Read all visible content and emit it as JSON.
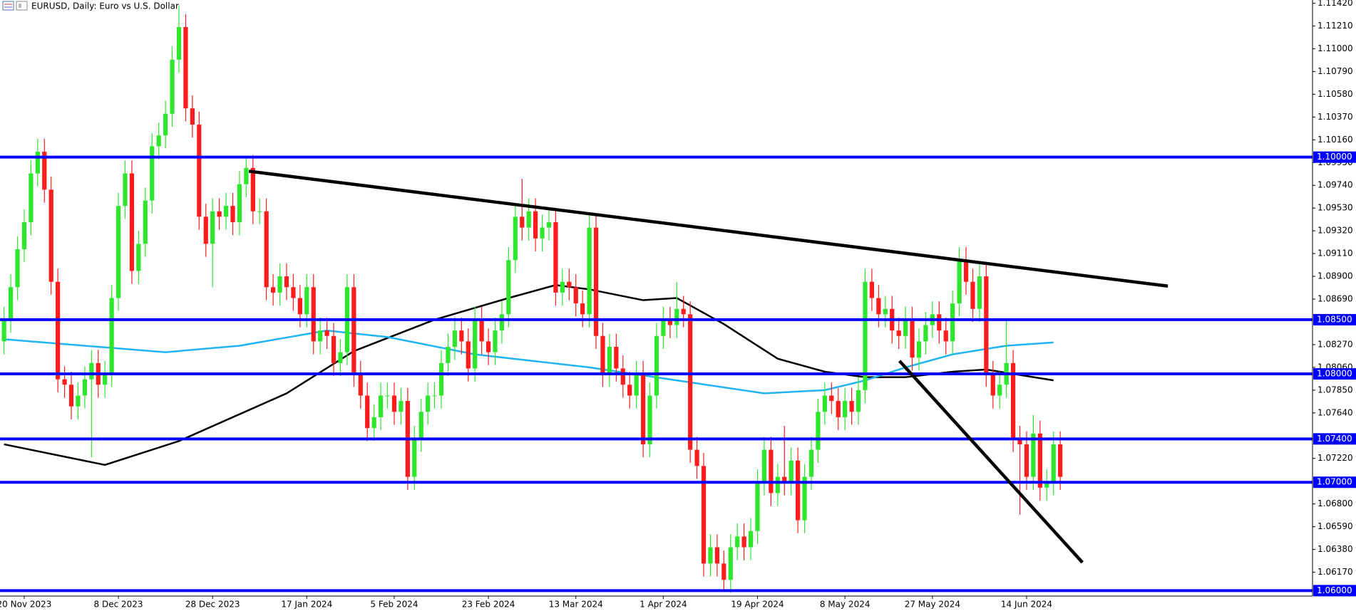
{
  "chart_data": {
    "type": "candlestick",
    "title": "EURUSD, Daily:  Euro vs U.S. Dollar",
    "up_color": "#2ee62e",
    "down_color": "#ff1c1c",
    "open": [
      1.083,
      1.085,
      1.088,
      1.0915,
      1.094,
      1.0985,
      1.1005,
      1.097,
      1.0885,
      1.0795,
      1.079,
      1.077,
      1.078,
      1.0795,
      1.081,
      1.079,
      1.08,
      1.087,
      1.0955,
      1.0985,
      1.0895,
      1.092,
      1.096,
      1.101,
      1.102,
      1.104,
      1.109,
      1.112,
      1.1045,
      1.103,
      1.0945,
      1.092,
      1.095,
      1.0945,
      1.0955,
      1.094,
      1.0975,
      1.099,
      1.095,
      1.095,
      1.088,
      1.0875,
      1.089,
      1.088,
      1.087,
      1.0855,
      1.088,
      1.083,
      1.084,
      1.0835,
      1.081,
      1.082,
      1.088,
      1.08,
      1.078,
      1.075,
      1.076,
      1.078,
      1.078,
      1.0765,
      1.0775,
      1.0705,
      1.074,
      1.0765,
      1.078,
      1.078,
      1.081,
      1.0825,
      1.084,
      1.083,
      1.0805,
      1.085,
      1.083,
      1.082,
      1.084,
      1.0855,
      1.0905,
      1.0945,
      1.0935,
      1.095,
      1.0925,
      1.0935,
      1.094,
      1.0875,
      1.0885,
      1.088,
      1.0865,
      1.0855,
      1.0935,
      1.0835,
      1.08,
      1.0825,
      1.0805,
      1.079,
      1.078,
      1.08,
      1.0735,
      1.078,
      1.0835,
      1.085,
      1.0845,
      1.086,
      1.0855,
      1.073,
      1.0715,
      1.0625,
      1.064,
      1.0625,
      1.061,
      1.064,
      1.065,
      1.064,
      1.0655,
      1.07,
      1.073,
      1.069,
      1.0705,
      1.07,
      1.072,
      1.0665,
      1.0705,
      1.073,
      1.0765,
      1.078,
      1.0775,
      1.076,
      1.0775,
      1.0765,
      1.0785,
      1.0885,
      1.087,
      1.0855,
      1.086,
      1.084,
      1.0835,
      1.085,
      1.0815,
      1.083,
      1.0845,
      1.0855,
      1.084,
      1.083,
      1.0865,
      1.0905,
      1.0885,
      1.086,
      1.089,
      1.08,
      1.078,
      1.079,
      1.081,
      1.074,
      1.0735,
      1.0705,
      1.0745,
      1.0695,
      1.07,
      1.0735
    ],
    "high": [
      1.0862,
      1.0892,
      1.0927,
      1.0952,
      1.0997,
      1.1017,
      1.1017,
      1.0982,
      1.0897,
      1.0807,
      1.0802,
      1.0792,
      1.0807,
      1.0822,
      1.0822,
      1.0812,
      1.0882,
      1.0967,
      1.0997,
      1.0997,
      1.0932,
      1.0972,
      1.1022,
      1.1032,
      1.1052,
      1.1102,
      1.114,
      1.1132,
      1.1057,
      1.1042,
      1.0957,
      1.0962,
      1.0962,
      1.0967,
      1.0967,
      1.0987,
      1.1,
      1.1002,
      1.0962,
      1.0962,
      1.0892,
      1.0902,
      1.0902,
      1.0892,
      1.0882,
      1.0892,
      1.0892,
      1.0852,
      1.0852,
      1.0847,
      1.0832,
      1.0892,
      1.0892,
      1.0812,
      1.0792,
      1.0772,
      1.0792,
      1.0792,
      1.0792,
      1.0787,
      1.0787,
      1.0752,
      1.0777,
      1.0792,
      1.0792,
      1.0822,
      1.0837,
      1.0852,
      1.0852,
      1.0842,
      1.0862,
      1.0862,
      1.0842,
      1.0852,
      1.0867,
      1.0917,
      1.0957,
      1.098,
      1.0962,
      1.0962,
      1.0947,
      1.0952,
      1.0952,
      1.0897,
      1.0897,
      1.0892,
      1.0877,
      1.0947,
      1.0947,
      1.0847,
      1.0837,
      1.0837,
      1.0817,
      1.0802,
      1.0812,
      1.0812,
      1.0792,
      1.0847,
      1.0862,
      1.0862,
      1.0885,
      1.0872,
      1.0867,
      1.0742,
      1.0727,
      1.0652,
      1.0652,
      1.0637,
      1.0652,
      1.0662,
      1.0662,
      1.0667,
      1.0712,
      1.0742,
      1.0742,
      1.0717,
      1.0752,
      1.0732,
      1.0732,
      1.0717,
      1.0742,
      1.0777,
      1.0792,
      1.0792,
      1.0787,
      1.0787,
      1.0787,
      1.0797,
      1.0897,
      1.0897,
      1.0882,
      1.0872,
      1.0872,
      1.0852,
      1.0862,
      1.0862,
      1.0842,
      1.0857,
      1.0867,
      1.0867,
      1.0852,
      1.0877,
      1.0917,
      1.0917,
      1.0897,
      1.0902,
      1.0902,
      1.0812,
      1.0802,
      1.085,
      1.0822,
      1.0752,
      1.0747,
      1.0762,
      1.0757,
      1.0712,
      1.0747,
      1.0747
    ],
    "low": [
      1.0818,
      1.0838,
      1.0868,
      1.0903,
      1.0928,
      1.0973,
      1.0958,
      1.0873,
      1.0783,
      1.0778,
      1.0758,
      1.0758,
      1.0768,
      1.0723,
      1.0778,
      1.0778,
      1.0788,
      1.0858,
      1.0943,
      1.0883,
      1.0883,
      1.0908,
      1.0948,
      1.0998,
      1.1008,
      1.1028,
      1.1078,
      1.1033,
      1.1018,
      1.0933,
      1.0908,
      1.088,
      1.0933,
      1.0933,
      1.0928,
      1.0928,
      1.0963,
      1.0938,
      1.0938,
      1.0868,
      1.0863,
      1.0863,
      1.0868,
      1.0858,
      1.0843,
      1.0843,
      1.0818,
      1.0818,
      1.0823,
      1.0798,
      1.0798,
      1.0808,
      1.0788,
      1.0768,
      1.0738,
      1.0738,
      1.0748,
      1.0768,
      1.0753,
      1.0753,
      1.0693,
      1.0693,
      1.0728,
      1.0753,
      1.0768,
      1.0768,
      1.0798,
      1.0813,
      1.0818,
      1.0793,
      1.0793,
      1.0818,
      1.0808,
      1.0808,
      1.0828,
      1.0843,
      1.0893,
      1.0923,
      1.0923,
      1.0913,
      1.0913,
      1.0923,
      1.0863,
      1.0863,
      1.0868,
      1.0853,
      1.0843,
      1.0843,
      1.0823,
      1.0788,
      1.0788,
      1.0793,
      1.0778,
      1.0768,
      1.0768,
      1.0723,
      1.0723,
      1.0768,
      1.0823,
      1.0833,
      1.0833,
      1.0843,
      1.0718,
      1.0703,
      1.0613,
      1.0613,
      1.0613,
      1.0601,
      1.0598,
      1.0628,
      1.0628,
      1.0628,
      1.0643,
      1.0688,
      1.0678,
      1.0678,
      1.0688,
      1.0688,
      1.0653,
      1.0653,
      1.0693,
      1.0718,
      1.0753,
      1.0763,
      1.0748,
      1.0748,
      1.0753,
      1.0753,
      1.0773,
      1.0858,
      1.0843,
      1.0843,
      1.0828,
      1.0823,
      1.0823,
      1.0803,
      1.0803,
      1.0818,
      1.0833,
      1.0828,
      1.0818,
      1.0818,
      1.0853,
      1.0873,
      1.0848,
      1.0848,
      1.0788,
      1.0768,
      1.0768,
      1.0778,
      1.0728,
      1.067,
      1.0693,
      1.0693,
      1.0683,
      1.0683,
      1.0688,
      1.0693
    ],
    "close": [
      1.085,
      1.088,
      1.0915,
      1.094,
      1.0985,
      1.1005,
      1.097,
      1.0885,
      1.0795,
      1.079,
      1.077,
      1.078,
      1.0795,
      1.081,
      1.079,
      1.08,
      1.087,
      1.0955,
      1.0985,
      1.0895,
      1.092,
      1.096,
      1.101,
      1.102,
      1.104,
      1.109,
      1.112,
      1.1045,
      1.103,
      1.0945,
      1.092,
      1.095,
      1.0945,
      1.0955,
      1.094,
      1.0975,
      1.099,
      1.095,
      1.095,
      1.088,
      1.0875,
      1.089,
      1.088,
      1.087,
      1.0855,
      1.088,
      1.083,
      1.084,
      1.0835,
      1.081,
      1.082,
      1.088,
      1.08,
      1.078,
      1.075,
      1.076,
      1.078,
      1.078,
      1.0765,
      1.0775,
      1.0705,
      1.074,
      1.0765,
      1.078,
      1.078,
      1.081,
      1.0825,
      1.084,
      1.083,
      1.0805,
      1.085,
      1.083,
      1.082,
      1.084,
      1.0855,
      1.0905,
      1.0945,
      1.0935,
      1.095,
      1.0925,
      1.0935,
      1.094,
      1.0875,
      1.0885,
      1.088,
      1.0865,
      1.0855,
      1.0935,
      1.0835,
      1.08,
      1.0825,
      1.0805,
      1.079,
      1.078,
      1.08,
      1.0735,
      1.078,
      1.0835,
      1.085,
      1.0845,
      1.086,
      1.0855,
      1.073,
      1.0715,
      1.0625,
      1.064,
      1.0625,
      1.061,
      1.064,
      1.065,
      1.064,
      1.0655,
      1.07,
      1.073,
      1.069,
      1.0705,
      1.07,
      1.072,
      1.0665,
      1.0705,
      1.073,
      1.0765,
      1.078,
      1.0775,
      1.076,
      1.0775,
      1.0765,
      1.0785,
      1.0885,
      1.087,
      1.0855,
      1.086,
      1.084,
      1.0835,
      1.085,
      1.0815,
      1.083,
      1.0845,
      1.0855,
      1.084,
      1.083,
      1.0865,
      1.0905,
      1.0885,
      1.086,
      1.089,
      1.08,
      1.078,
      1.079,
      1.081,
      1.074,
      1.0735,
      1.0705,
      1.0745,
      1.0695,
      1.07,
      1.0735,
      1.0705
    ],
    "xlim": [
      -0.6,
      194.5
    ],
    "xticks": [
      {
        "value": 3,
        "label": "20 Nov 2023"
      },
      {
        "value": 17,
        "label": "8 Dec 2023"
      },
      {
        "value": 31,
        "label": "28 Dec 2023"
      },
      {
        "value": 45,
        "label": "17 Jan 2024"
      },
      {
        "value": 58,
        "label": "5 Feb 2024"
      },
      {
        "value": 72,
        "label": "23 Feb 2024"
      },
      {
        "value": 85,
        "label": "13 Mar 2024"
      },
      {
        "value": 98,
        "label": "1 Apr 2024"
      },
      {
        "value": 112,
        "label": "19 Apr 2024"
      },
      {
        "value": 125,
        "label": "8 May 2024"
      },
      {
        "value": 138,
        "label": "27 May 2024"
      },
      {
        "value": 152,
        "label": "14 Jun 2024"
      }
    ],
    "ylim": [
      1.0595,
      1.1145
    ],
    "yticks": [
      {
        "value": 1.1142,
        "label": "1.11420"
      },
      {
        "value": 1.1121,
        "label": "1.11210"
      },
      {
        "value": 1.11,
        "label": "1.11000"
      },
      {
        "value": 1.1079,
        "label": "1.10790"
      },
      {
        "value": 1.1058,
        "label": "1.10580"
      },
      {
        "value": 1.1037,
        "label": "1.10370"
      },
      {
        "value": 1.1016,
        "label": "1.10160"
      },
      {
        "value": 1.0995,
        "label": "1.09950"
      },
      {
        "value": 1.0974,
        "label": "1.09740"
      },
      {
        "value": 1.0953,
        "label": "1.09530"
      },
      {
        "value": 1.0932,
        "label": "1.09320"
      },
      {
        "value": 1.0911,
        "label": "1.09110"
      },
      {
        "value": 1.089,
        "label": "1.08900"
      },
      {
        "value": 1.0869,
        "label": "1.08690"
      },
      {
        "value": 1.0827,
        "label": "1.08270"
      },
      {
        "value": 1.0806,
        "label": "1.08060"
      },
      {
        "value": 1.0785,
        "label": "1.07850"
      },
      {
        "value": 1.0764,
        "label": "1.07640"
      },
      {
        "value": 1.0722,
        "label": "1.07220"
      },
      {
        "value": 1.068,
        "label": "1.06800"
      },
      {
        "value": 1.0659,
        "label": "1.06590"
      },
      {
        "value": 1.0638,
        "label": "1.06380"
      },
      {
        "value": 1.0617,
        "label": "1.06170"
      }
    ],
    "level_color": "#0000ff",
    "levels": [
      {
        "value": 1.1,
        "label": "1.10000"
      },
      {
        "value": 1.085,
        "label": "1.08500"
      },
      {
        "value": 1.08,
        "label": "1.08000"
      },
      {
        "value": 1.074,
        "label": "1.07400"
      },
      {
        "value": 1.07,
        "label": "1.07000"
      },
      {
        "value": 1.06,
        "label": "1.06000"
      }
    ],
    "moving_averages": [
      {
        "color": "#000000",
        "x": [
          0,
          15,
          26,
          42,
          52,
          64,
          75,
          82,
          87,
          95,
          100,
          107,
          115,
          122,
          128,
          134,
          141,
          146,
          156
        ],
        "values": [
          1.0735,
          1.0716,
          1.0738,
          1.0782,
          1.0821,
          1.085,
          1.087,
          1.0882,
          1.0878,
          1.0868,
          1.087,
          1.0846,
          1.0814,
          1.0802,
          1.0797,
          1.0797,
          1.0802,
          1.0804,
          1.0794
        ]
      },
      {
        "color": "#1fb4f0",
        "x": [
          0,
          12,
          24,
          35,
          48,
          57,
          70,
          87,
          100,
          113,
          122,
          128,
          134,
          141,
          149,
          156
        ],
        "values": [
          1.0832,
          1.0826,
          1.082,
          1.0826,
          1.084,
          1.0834,
          1.0818,
          1.0806,
          1.0794,
          1.0782,
          1.0785,
          1.0794,
          1.0806,
          1.0818,
          1.0826,
          1.0829
        ]
      }
    ],
    "trendlines": [
      {
        "color": "#000000",
        "x": [
          36.4,
          173
        ],
        "values": [
          1.0987,
          1.0881
        ]
      },
      {
        "color": "#000000",
        "x": [
          133.1,
          160.3
        ],
        "values": [
          1.0812,
          1.0626
        ]
      }
    ]
  }
}
